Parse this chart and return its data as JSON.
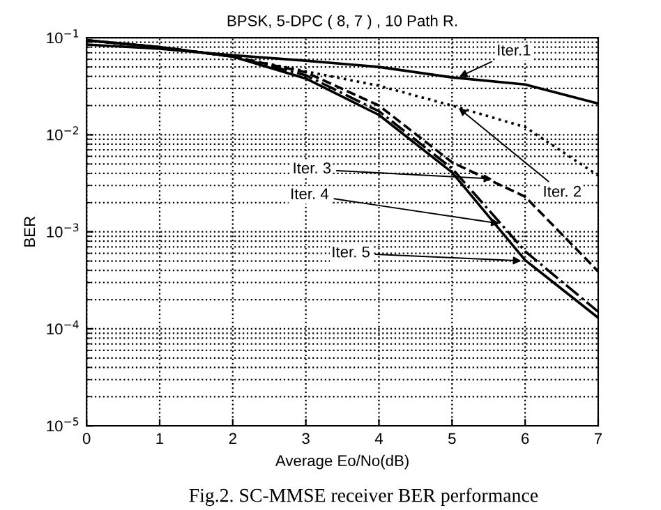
{
  "chart_data": {
    "type": "line",
    "title": "BPSK, 5-DPC ( 8, 7 ) , 10 Path R.",
    "xlabel": "Average Eo/No(dB)",
    "ylabel": "BER",
    "x": [
      0,
      1,
      2,
      3,
      4,
      5,
      6,
      7
    ],
    "series": [
      {
        "color": "#000000",
        "line_style": "solid",
        "values": [
          0.085,
          0.077,
          0.066,
          0.058,
          0.05,
          0.039,
          0.033,
          0.021
        ]
      },
      {
        "color": "#000000",
        "line_style": "dotted",
        "values": [
          0.094,
          0.08,
          0.064,
          0.045,
          0.032,
          0.02,
          0.012,
          0.0038
        ]
      },
      {
        "color": "#000000",
        "line_style": "dashed",
        "values": [
          0.094,
          0.08,
          0.064,
          0.044,
          0.02,
          0.0052,
          0.0023,
          0.00039
        ]
      },
      {
        "color": "#000000",
        "line_style": "dashdot",
        "values": [
          0.094,
          0.08,
          0.064,
          0.041,
          0.0175,
          0.0045,
          0.00063,
          0.00015
        ]
      },
      {
        "color": "#000000",
        "line_style": "solid",
        "values": [
          0.094,
          0.08,
          0.064,
          0.038,
          0.016,
          0.0041,
          0.00051,
          0.00013
        ]
      }
    ],
    "log": "y",
    "xlim": [
      0,
      7
    ],
    "ylim": [
      1e-05,
      0.1
    ],
    "xticks": [
      0,
      1,
      2,
      3,
      4,
      5,
      6,
      7
    ],
    "yticks": [
      {
        "value": 1e-05,
        "label": "10$^{−5}$"
      },
      {
        "value": 0.0001,
        "label": "10$^{−4}$"
      },
      {
        "value": 0.001,
        "label": "10$^{−3}$"
      },
      {
        "value": 0.01,
        "label": "10$^{−2}$"
      },
      {
        "value": 0.1,
        "label": "10$^{−1}$"
      }
    ],
    "grid": true,
    "legend": false,
    "annotations": [
      {
        "text": "Iter.1",
        "x": 5.05,
        "y": 0.038
      },
      {
        "text": "Iter. 2",
        "x": 5.05,
        "y": 0.02
      },
      {
        "text": "Iter. 3",
        "x": 5.6,
        "y": 0.0035
      },
      {
        "text": "Iter. 4",
        "x": 5.7,
        "y": 0.0012
      },
      {
        "text": "Iter. 5",
        "x": 6.0,
        "y": 0.0005
      },
      "Fig.2. SC-MMSE receiver BER performance"
    ]
  }
}
